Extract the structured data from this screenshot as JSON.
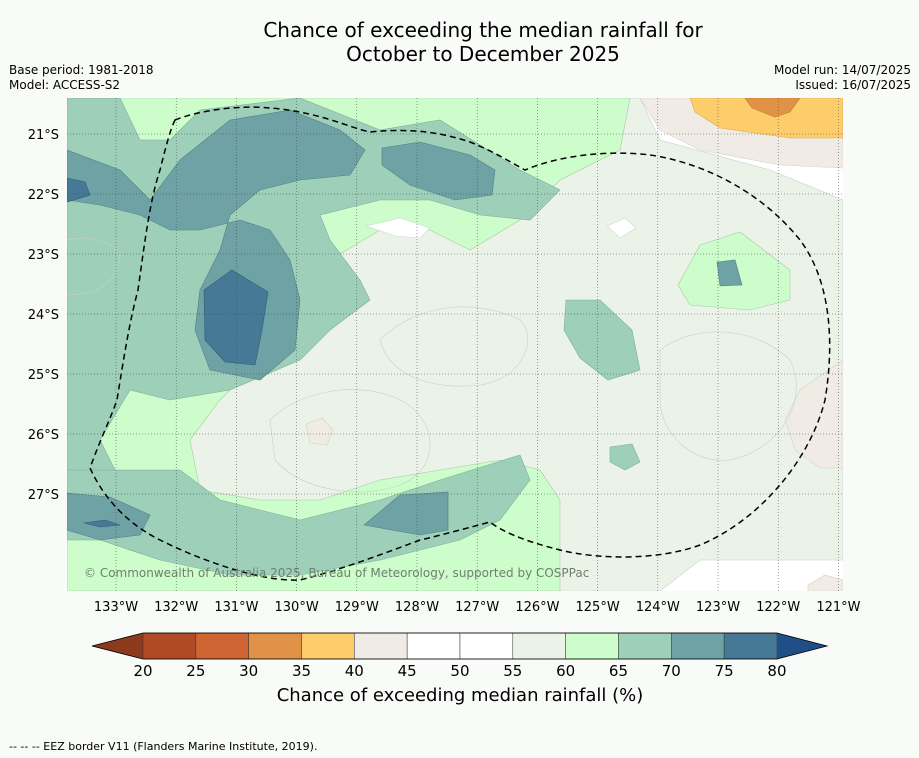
{
  "title": {
    "line1": "Chance of exceeding the median rainfall for",
    "line2": "October to December 2025"
  },
  "info_left": {
    "base_period": "Base period: 1981-2018",
    "model": "Model: ACCESS-S2"
  },
  "info_right": {
    "model_run": "Model run: 14/07/2025",
    "issued": "Issued: 16/07/2025"
  },
  "map": {
    "lat_labels": [
      "21°S",
      "22°S",
      "23°S",
      "24°S",
      "25°S",
      "26°S",
      "27°S"
    ],
    "lon_labels": [
      "133°W",
      "132°W",
      "131°W",
      "130°W",
      "129°W",
      "128°W",
      "127°W",
      "126°W",
      "125°W",
      "124°W",
      "123°W",
      "122°W",
      "121°W"
    ],
    "copyright": "© Commonwealth of Australia 2025, Bureau of Meteorology, supported by COSPPac",
    "eez_border": "dashed"
  },
  "colorbar": {
    "ticks": [
      "20",
      "25",
      "30",
      "35",
      "40",
      "45",
      "50",
      "55",
      "60",
      "65",
      "70",
      "75",
      "80"
    ],
    "colors": {
      "under": "#8b3a1e",
      "b20_25": "#b04a24",
      "b25_30": "#cd6432",
      "b30_35": "#e09346",
      "b35_40": "#fdcc6b",
      "b40_45": "#f0ece5",
      "b45_55": "#ffffff",
      "b55_60": "#ebf3e8",
      "b60_65": "#ccfdca",
      "b65_70": "#9ecfb9",
      "b70_75": "#6ea2a4",
      "b75_80": "#457996",
      "over": "#1f4f86"
    },
    "label": "Chance of exceeding median rainfall (%)"
  },
  "footer": "--  --  -- EEZ border V11 (Flanders Marine Institute, 2019)."
}
